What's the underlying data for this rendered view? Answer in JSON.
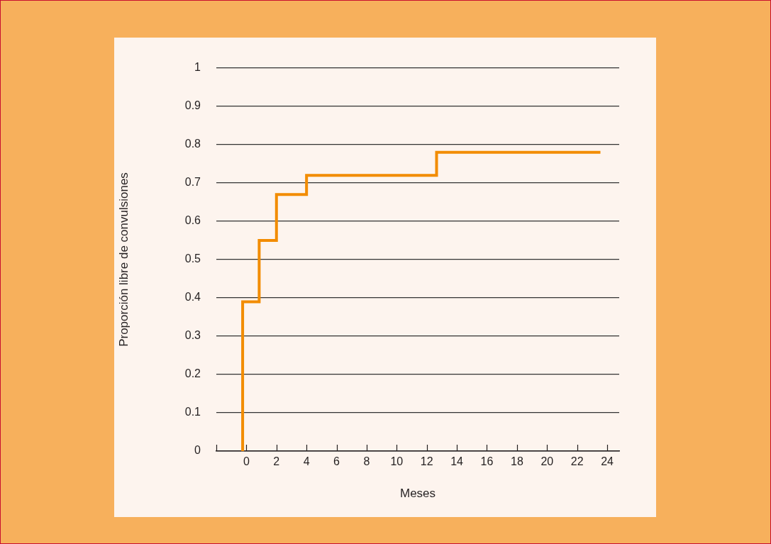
{
  "chart_data": {
    "type": "step",
    "xlabel": "Meses",
    "ylabel": "Proporción libre de convulsiones",
    "x": [
      -0.25,
      -0.25,
      0.85,
      2,
      4,
      12.65,
      23.55
    ],
    "series": [
      {
        "color": "#f28c00",
        "values": [
          0,
          0.39,
          0.55,
          0.67,
          0.72,
          0.78,
          0.78
        ]
      }
    ],
    "xlim": [
      -2,
      24.8
    ],
    "xticks": [
      {
        "value": -2,
        "label": null
      },
      0,
      2,
      4,
      6,
      8,
      10,
      12,
      14,
      16,
      18,
      20,
      22,
      24
    ],
    "ylim": [
      0,
      1
    ],
    "yticks": [
      0,
      0.1,
      0.2,
      0.3,
      0.4,
      0.5,
      0.6,
      0.7,
      0.8,
      0.9,
      1
    ],
    "grid": "y",
    "legend": false
  }
}
